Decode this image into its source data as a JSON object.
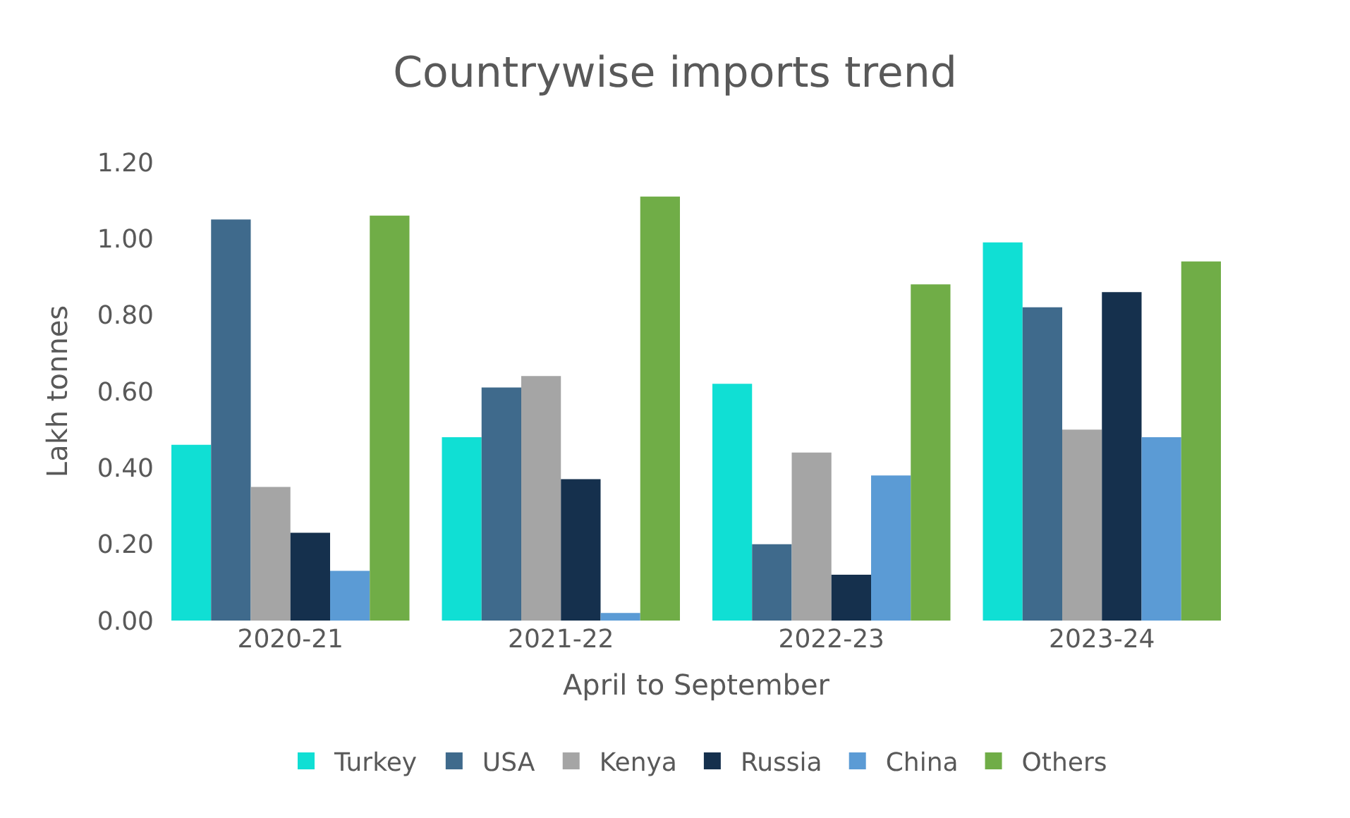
{
  "chart_data": {
    "type": "bar",
    "title": "Countrywise imports trend",
    "xlabel": "April to September",
    "ylabel": "Lakh tonnes",
    "categories": [
      "2020-21",
      "2021-22",
      "2022-23",
      "2023-24"
    ],
    "series": [
      {
        "name": "Turkey",
        "color": "#10dfd4",
        "values": [
          0.46,
          0.48,
          0.62,
          0.99
        ]
      },
      {
        "name": "USA",
        "color": "#3f6a8c",
        "values": [
          1.05,
          0.61,
          0.2,
          0.82
        ]
      },
      {
        "name": "Kenya",
        "color": "#a5a5a5",
        "values": [
          0.35,
          0.64,
          0.44,
          0.5
        ]
      },
      {
        "name": "Russia",
        "color": "#15304d",
        "values": [
          0.23,
          0.37,
          0.12,
          0.86
        ]
      },
      {
        "name": "China",
        "color": "#5b9bd5",
        "values": [
          0.13,
          0.02,
          0.38,
          0.48
        ]
      },
      {
        "name": "Others",
        "color": "#70ad47",
        "values": [
          1.06,
          1.11,
          0.88,
          0.94
        ]
      }
    ],
    "ylim": [
      0,
      1.2
    ],
    "yticks": [
      {
        "value": 0,
        "label": "0.00"
      },
      {
        "value": 0.2,
        "label": "0.20"
      },
      {
        "value": 0.4,
        "label": "0.40"
      },
      {
        "value": 0.6,
        "label": "0.60"
      },
      {
        "value": 0.8,
        "label": "0.80"
      },
      {
        "value": 1.0,
        "label": "1.00"
      },
      {
        "value": 1.2,
        "label": "1.20"
      }
    ],
    "legend": "bottom"
  }
}
